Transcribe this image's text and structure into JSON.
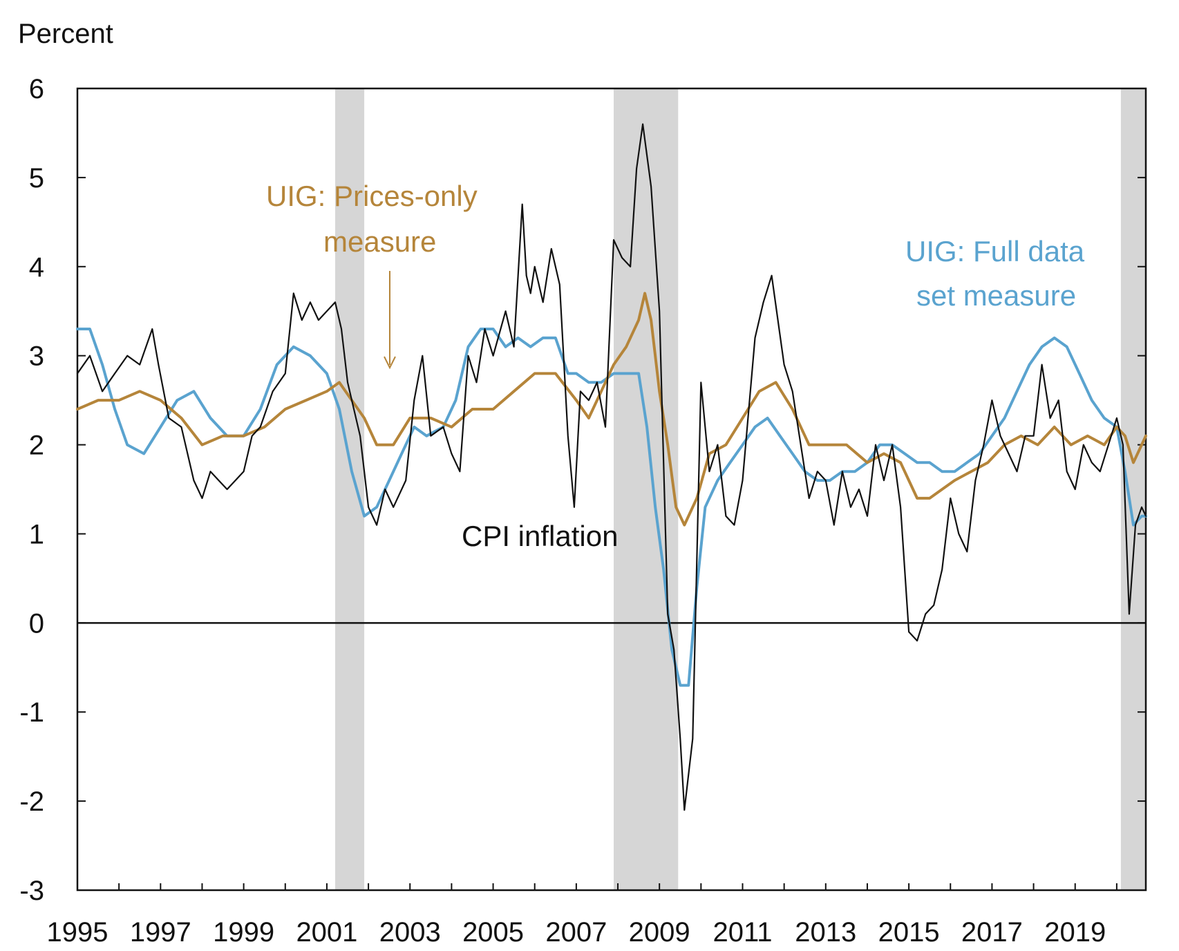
{
  "chart_data": {
    "type": "line",
    "ylabel": "Percent",
    "ylim": [
      -3,
      6
    ],
    "yticks": [
      "6",
      "5",
      "4",
      "3",
      "2",
      "1",
      "0",
      "-1",
      "-2",
      "-3"
    ],
    "xlim": [
      1995.0,
      2020.7
    ],
    "xticks": [
      "1995",
      "1997",
      "1999",
      "2001",
      "2003",
      "2005",
      "2007",
      "2009",
      "2011",
      "2013",
      "2015",
      "2017",
      "2019"
    ],
    "grid": false,
    "zero_line": true,
    "recessions": [
      [
        2001.2,
        2001.9
      ],
      [
        2007.9,
        2009.45
      ],
      [
        2020.1,
        2020.7
      ]
    ],
    "colors": {
      "cpi": "#111111",
      "full": "#5aa3cf",
      "prices": "#b5853a",
      "recession": "#d6d6d6"
    },
    "annotations": {
      "prices_line1": "UIG: Prices-only",
      "prices_line2": "measure",
      "full_line1": "UIG: Full data",
      "full_line2": "set measure",
      "cpi": "CPI inflation"
    },
    "series": [
      {
        "key": "cpi",
        "x": [
          1995.0,
          1995.3,
          1995.6,
          1995.9,
          1996.2,
          1996.5,
          1996.8,
          1996.95,
          1997.2,
          1997.5,
          1997.8,
          1998.0,
          1998.2,
          1998.4,
          1998.6,
          1998.8,
          1999.0,
          1999.2,
          1999.4,
          1999.7,
          2000.0,
          2000.2,
          2000.4,
          2000.6,
          2000.8,
          2001.0,
          2001.2,
          2001.35,
          2001.5,
          2001.8,
          2002.0,
          2002.2,
          2002.4,
          2002.6,
          2002.9,
          2003.1,
          2003.3,
          2003.5,
          2003.8,
          2004.0,
          2004.2,
          2004.4,
          2004.6,
          2004.8,
          2005.0,
          2005.3,
          2005.5,
          2005.7,
          2005.8,
          2005.9,
          2006.0,
          2006.2,
          2006.4,
          2006.6,
          2006.8,
          2006.95,
          2007.1,
          2007.3,
          2007.5,
          2007.7,
          2007.9,
          2008.1,
          2008.3,
          2008.45,
          2008.6,
          2008.8,
          2009.0,
          2009.2,
          2009.35,
          2009.5,
          2009.6,
          2009.8,
          2010.0,
          2010.2,
          2010.4,
          2010.6,
          2010.8,
          2011.0,
          2011.3,
          2011.5,
          2011.7,
          2012.0,
          2012.2,
          2012.4,
          2012.6,
          2012.8,
          2013.0,
          2013.2,
          2013.4,
          2013.6,
          2013.8,
          2014.0,
          2014.2,
          2014.4,
          2014.6,
          2014.8,
          2015.0,
          2015.2,
          2015.4,
          2015.6,
          2015.8,
          2016.0,
          2016.2,
          2016.4,
          2016.6,
          2016.8,
          2017.0,
          2017.2,
          2017.4,
          2017.6,
          2017.8,
          2018.0,
          2018.2,
          2018.4,
          2018.6,
          2018.8,
          2019.0,
          2019.2,
          2019.4,
          2019.6,
          2019.8,
          2020.0,
          2020.15,
          2020.3,
          2020.45,
          2020.6,
          2020.7
        ],
        "values": [
          2.8,
          3.0,
          2.6,
          2.8,
          3.0,
          2.9,
          3.3,
          2.9,
          2.3,
          2.2,
          1.6,
          1.4,
          1.7,
          1.6,
          1.5,
          1.6,
          1.7,
          2.1,
          2.2,
          2.6,
          2.8,
          3.7,
          3.4,
          3.6,
          3.4,
          3.5,
          3.6,
          3.3,
          2.7,
          2.1,
          1.3,
          1.1,
          1.5,
          1.3,
          1.6,
          2.5,
          3.0,
          2.1,
          2.2,
          1.9,
          1.7,
          3.0,
          2.7,
          3.3,
          3.0,
          3.5,
          3.1,
          4.7,
          3.9,
          3.7,
          4.0,
          3.6,
          4.2,
          3.8,
          2.1,
          1.3,
          2.6,
          2.5,
          2.7,
          2.2,
          4.3,
          4.1,
          4.0,
          5.1,
          5.6,
          4.9,
          3.5,
          0.1,
          -0.3,
          -1.3,
          -2.1,
          -1.3,
          2.7,
          1.7,
          2.0,
          1.2,
          1.1,
          1.6,
          3.2,
          3.6,
          3.9,
          2.9,
          2.6,
          2.0,
          1.4,
          1.7,
          1.6,
          1.1,
          1.7,
          1.3,
          1.5,
          1.2,
          2.0,
          1.6,
          2.0,
          1.3,
          -0.1,
          -0.2,
          0.1,
          0.2,
          0.6,
          1.4,
          1.0,
          0.8,
          1.6,
          2.0,
          2.5,
          2.1,
          1.9,
          1.7,
          2.1,
          2.1,
          2.9,
          2.3,
          2.5,
          1.7,
          1.5,
          2.0,
          1.8,
          1.7,
          2.0,
          2.3,
          2.0,
          0.1,
          1.1,
          1.3,
          1.2
        ]
      },
      {
        "key": "full",
        "x": [
          1995.0,
          1995.3,
          1995.6,
          1995.9,
          1996.2,
          1996.6,
          1997.0,
          1997.4,
          1997.8,
          1998.2,
          1998.6,
          1999.0,
          1999.4,
          1999.8,
          2000.2,
          2000.6,
          2001.0,
          2001.3,
          2001.6,
          2001.9,
          2002.2,
          2002.5,
          2002.8,
          2003.1,
          2003.4,
          2003.8,
          2004.1,
          2004.4,
          2004.7,
          2005.0,
          2005.3,
          2005.6,
          2005.9,
          2006.2,
          2006.5,
          2006.8,
          2007.0,
          2007.3,
          2007.6,
          2007.9,
          2008.2,
          2008.5,
          2008.7,
          2008.9,
          2009.1,
          2009.3,
          2009.5,
          2009.7,
          2009.9,
          2010.1,
          2010.4,
          2010.7,
          2011.0,
          2011.3,
          2011.6,
          2011.9,
          2012.2,
          2012.5,
          2012.8,
          2013.1,
          2013.4,
          2013.7,
          2014.0,
          2014.3,
          2014.6,
          2014.9,
          2015.2,
          2015.5,
          2015.8,
          2016.1,
          2016.4,
          2016.7,
          2017.0,
          2017.3,
          2017.6,
          2017.9,
          2018.2,
          2018.5,
          2018.8,
          2019.1,
          2019.4,
          2019.7,
          2020.0,
          2020.2,
          2020.4,
          2020.6,
          2020.7
        ],
        "values": [
          3.3,
          3.3,
          2.9,
          2.4,
          2.0,
          1.9,
          2.2,
          2.5,
          2.6,
          2.3,
          2.1,
          2.1,
          2.4,
          2.9,
          3.1,
          3.0,
          2.8,
          2.4,
          1.7,
          1.2,
          1.3,
          1.6,
          1.9,
          2.2,
          2.1,
          2.2,
          2.5,
          3.1,
          3.3,
          3.3,
          3.1,
          3.2,
          3.1,
          3.2,
          3.2,
          2.8,
          2.8,
          2.7,
          2.7,
          2.8,
          2.8,
          2.8,
          2.2,
          1.3,
          0.6,
          -0.3,
          -0.7,
          -0.7,
          0.4,
          1.3,
          1.6,
          1.8,
          2.0,
          2.2,
          2.3,
          2.1,
          1.9,
          1.7,
          1.6,
          1.6,
          1.7,
          1.7,
          1.8,
          2.0,
          2.0,
          1.9,
          1.8,
          1.8,
          1.7,
          1.7,
          1.8,
          1.9,
          2.1,
          2.3,
          2.6,
          2.9,
          3.1,
          3.2,
          3.1,
          2.8,
          2.5,
          2.3,
          2.2,
          1.7,
          1.1,
          1.2,
          1.2
        ]
      },
      {
        "key": "prices",
        "x": [
          1995.0,
          1995.5,
          1996.0,
          1996.5,
          1997.0,
          1997.5,
          1998.0,
          1998.5,
          1999.0,
          1999.5,
          2000.0,
          2000.5,
          2001.0,
          2001.3,
          2001.6,
          2001.9,
          2002.2,
          2002.6,
          2003.0,
          2003.5,
          2004.0,
          2004.5,
          2005.0,
          2005.5,
          2006.0,
          2006.5,
          2007.0,
          2007.3,
          2007.6,
          2007.9,
          2008.2,
          2008.5,
          2008.65,
          2008.8,
          2009.0,
          2009.2,
          2009.4,
          2009.6,
          2009.9,
          2010.2,
          2010.6,
          2011.0,
          2011.4,
          2011.8,
          2012.2,
          2012.6,
          2013.0,
          2013.5,
          2014.0,
          2014.4,
          2014.8,
          2015.0,
          2015.2,
          2015.5,
          2015.8,
          2016.1,
          2016.5,
          2016.9,
          2017.3,
          2017.7,
          2018.1,
          2018.5,
          2018.9,
          2019.3,
          2019.7,
          2020.0,
          2020.2,
          2020.4,
          2020.6,
          2020.7
        ],
        "values": [
          2.4,
          2.5,
          2.5,
          2.6,
          2.5,
          2.3,
          2.0,
          2.1,
          2.1,
          2.2,
          2.4,
          2.5,
          2.6,
          2.7,
          2.5,
          2.3,
          2.0,
          2.0,
          2.3,
          2.3,
          2.2,
          2.4,
          2.4,
          2.6,
          2.8,
          2.8,
          2.5,
          2.3,
          2.6,
          2.9,
          3.1,
          3.4,
          3.7,
          3.4,
          2.6,
          2.0,
          1.3,
          1.1,
          1.4,
          1.9,
          2.0,
          2.3,
          2.6,
          2.7,
          2.4,
          2.0,
          2.0,
          2.0,
          1.8,
          1.9,
          1.8,
          1.6,
          1.4,
          1.4,
          1.5,
          1.6,
          1.7,
          1.8,
          2.0,
          2.1,
          2.0,
          2.2,
          2.0,
          2.1,
          2.0,
          2.2,
          2.1,
          1.8,
          2.0,
          2.1
        ]
      }
    ]
  }
}
